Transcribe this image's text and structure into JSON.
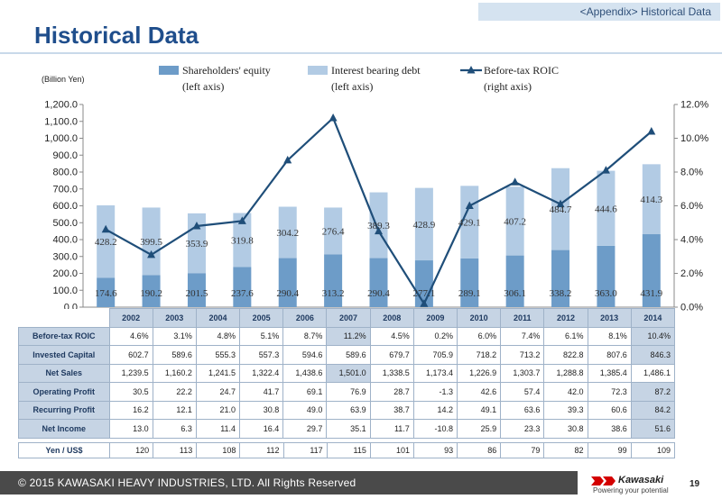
{
  "header": {
    "tag": "<Appendix> Historical Data",
    "title": "Historical Data"
  },
  "unit_label": "(Billion Yen)",
  "legend": [
    {
      "label_line1": "Shareholders' equity",
      "label_line2": "(left axis)",
      "color": "#6d9cc8"
    },
    {
      "label_line1": "Interest bearing debt",
      "label_line2": "(left axis)",
      "color": "#b2cbe4"
    },
    {
      "label_line1": "Before-tax ROIC",
      "label_line2": "(right axis)",
      "color": "#1f4e79"
    }
  ],
  "chart_data": {
    "type": "bar",
    "stacked": true,
    "categories": [
      "2002",
      "2003",
      "2004",
      "2005",
      "2006",
      "2007",
      "2008",
      "2009",
      "2010",
      "2011",
      "2012",
      "2013",
      "2014"
    ],
    "series": [
      {
        "name": "Shareholders' equity",
        "axis": "left",
        "values": [
          174.6,
          190.2,
          201.5,
          237.6,
          290.4,
          313.2,
          290.4,
          277.1,
          289.1,
          306.1,
          338.2,
          363.0,
          431.9
        ],
        "labels": [
          "174.6",
          "190.2",
          "201.5",
          "237.6",
          "290.4",
          "313.2",
          "290.4",
          "277.1",
          "289.1",
          "306.1",
          "338.2",
          "363.0",
          "431.9"
        ]
      },
      {
        "name": "Interest bearing debt",
        "axis": "left",
        "values": [
          428.2,
          399.5,
          353.9,
          319.8,
          304.2,
          276.4,
          389.3,
          428.9,
          429.1,
          407.2,
          484.7,
          444.6,
          414.3
        ],
        "labels": [
          "428.2",
          "399.5",
          "353.9",
          "319.8",
          "304.2",
          "276.4",
          "389.3",
          "428.9",
          "429.1",
          "407.2",
          "484.7",
          "444.6",
          "414.3"
        ]
      },
      {
        "name": "Before-tax ROIC",
        "axis": "right",
        "type": "line",
        "values": [
          4.6,
          3.1,
          4.8,
          5.1,
          8.7,
          11.2,
          4.5,
          0.2,
          6.0,
          7.4,
          6.1,
          8.1,
          10.4
        ]
      }
    ],
    "ylim_left": [
      0,
      1200
    ],
    "yticks_left": [
      "0.0",
      "100.0",
      "200.0",
      "300.0",
      "400.0",
      "500.0",
      "600.0",
      "700.0",
      "800.0",
      "900.0",
      "1,000.0",
      "1,100.0",
      "1,200.0"
    ],
    "ylim_right": [
      0,
      12
    ],
    "yticks_right": [
      "0.0%",
      "2.0%",
      "4.0%",
      "6.0%",
      "8.0%",
      "10.0%",
      "12.0%"
    ],
    "grid": false,
    "legend_position": "top"
  },
  "table": {
    "years": [
      "2002",
      "2003",
      "2004",
      "2005",
      "2006",
      "2007",
      "2008",
      "2009",
      "2010",
      "2011",
      "2012",
      "2013",
      "2014"
    ],
    "rows": [
      {
        "label": "Before-tax ROIC",
        "values": [
          "4.6%",
          "3.1%",
          "4.8%",
          "5.1%",
          "8.7%",
          "11.2%",
          "4.5%",
          "0.2%",
          "6.0%",
          "7.4%",
          "6.1%",
          "8.1%",
          "10.4%"
        ],
        "highlight": [
          5,
          12
        ]
      },
      {
        "label": "Invested Capital",
        "values": [
          "602.7",
          "589.6",
          "555.3",
          "557.3",
          "594.6",
          "589.6",
          "679.7",
          "705.9",
          "718.2",
          "713.2",
          "822.8",
          "807.6",
          "846.3"
        ],
        "highlight": [
          12
        ]
      },
      {
        "label": "Net Sales",
        "values": [
          "1,239.5",
          "1,160.2",
          "1,241.5",
          "1,322.4",
          "1,438.6",
          "1,501.0",
          "1,338.5",
          "1,173.4",
          "1,226.9",
          "1,303.7",
          "1,288.8",
          "1,385.4",
          "1,486.1"
        ],
        "highlight": [
          5
        ]
      },
      {
        "label": "Operating Profit",
        "values": [
          "30.5",
          "22.2",
          "24.7",
          "41.7",
          "69.1",
          "76.9",
          "28.7",
          "-1.3",
          "42.6",
          "57.4",
          "42.0",
          "72.3",
          "87.2"
        ],
        "highlight": [
          12
        ]
      },
      {
        "label": "Recurring Profit",
        "values": [
          "16.2",
          "12.1",
          "21.0",
          "30.8",
          "49.0",
          "63.9",
          "38.7",
          "14.2",
          "49.1",
          "63.6",
          "39.3",
          "60.6",
          "84.2"
        ],
        "highlight": [
          12
        ]
      },
      {
        "label": "Net Income",
        "values": [
          "13.0",
          "6.3",
          "11.4",
          "16.4",
          "29.7",
          "35.1",
          "11.7",
          "-10.8",
          "25.9",
          "23.3",
          "30.8",
          "38.6",
          "51.6"
        ],
        "highlight": [
          12
        ]
      }
    ],
    "fx": {
      "label": "Yen / US$",
      "values": [
        "120",
        "113",
        "108",
        "112",
        "117",
        "115",
        "101",
        "93",
        "86",
        "79",
        "82",
        "99",
        "109"
      ]
    }
  },
  "footer": {
    "copyright": "© 2015 KAWASAKI HEAVY INDUSTRIES, LTD. All Rights Reserved",
    "logo_name": "Kawasaki",
    "logo_tagline": "Powering your potential",
    "page_number": "19"
  }
}
